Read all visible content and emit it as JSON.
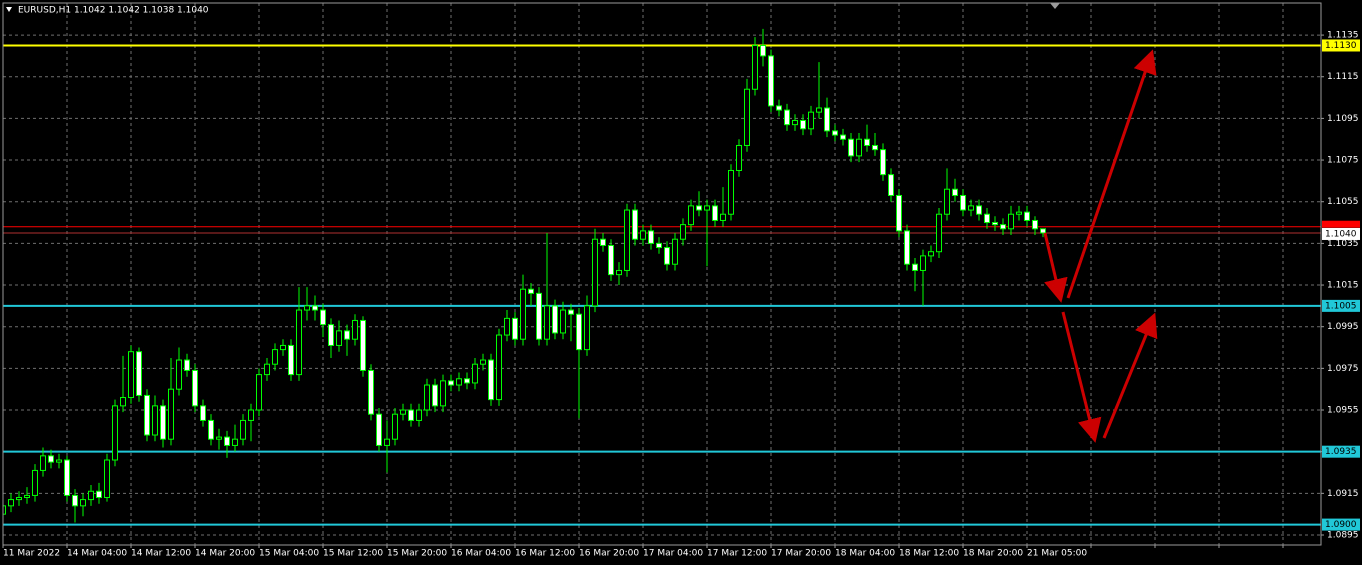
{
  "chart_data": {
    "type": "candlestick",
    "title": "EURUSD,H1  1.1042 1.1042 1.1038 1.1040",
    "ylim": [
      1.08902,
      1.11504
    ],
    "yticks": [
      1.0895,
      1.0915,
      1.0935,
      1.0955,
      1.0975,
      1.0995,
      1.1015,
      1.1035,
      1.1055,
      1.1075,
      1.1095,
      1.1115,
      1.1135
    ],
    "grid": true,
    "bull_color": "#000000",
    "bear_color": "#ffffff",
    "wick_color": "#00ff00",
    "categories": [
      "11 Mar 2022",
      null,
      null,
      null,
      null,
      null,
      null,
      null,
      "14 Mar 04:00",
      null,
      null,
      null,
      null,
      null,
      null,
      null,
      "14 Mar 12:00",
      null,
      null,
      null,
      null,
      null,
      null,
      null,
      "14 Mar 20:00",
      null,
      null,
      null,
      null,
      null,
      null,
      null,
      "15 Mar 04:00",
      null,
      null,
      null,
      null,
      null,
      null,
      null,
      "15 Mar 12:00",
      null,
      null,
      null,
      null,
      null,
      null,
      null,
      "15 Mar 20:00",
      null,
      null,
      null,
      null,
      null,
      null,
      null,
      "16 Mar 04:00",
      null,
      null,
      null,
      null,
      null,
      null,
      null,
      "16 Mar 12:00",
      null,
      null,
      null,
      null,
      null,
      null,
      null,
      "16 Mar 20:00",
      null,
      null,
      null,
      null,
      null,
      null,
      null,
      "17 Mar 04:00",
      null,
      null,
      null,
      null,
      null,
      null,
      null,
      "17 Mar 12:00",
      null,
      null,
      null,
      null,
      null,
      null,
      null,
      "17 Mar 20:00",
      null,
      null,
      null,
      null,
      null,
      null,
      null,
      "18 Mar 04:00",
      null,
      null,
      null,
      null,
      null,
      null,
      null,
      "18 Mar 12:00",
      null,
      null,
      null,
      null,
      null,
      null,
      null,
      "18 Mar 20:00",
      null,
      null,
      null,
      null,
      null,
      null,
      null,
      "21 Mar 05:00",
      null,
      null
    ],
    "candles": [
      [
        1.0905,
        1.0915,
        1.0898,
        1.0909
      ],
      [
        1.0909,
        1.0915,
        1.0906,
        1.0912
      ],
      [
        1.0912,
        1.0916,
        1.0909,
        1.0913
      ],
      [
        1.0913,
        1.0918,
        1.091,
        1.0914
      ],
      [
        1.0914,
        1.0929,
        1.0911,
        1.0926
      ],
      [
        1.0926,
        1.0937,
        1.0923,
        1.0933
      ],
      [
        1.0933,
        1.0936,
        1.0927,
        1.093
      ],
      [
        1.093,
        1.0934,
        1.0927,
        1.0931
      ],
      [
        1.0931,
        1.0933,
        1.0911,
        1.0914
      ],
      [
        1.0914,
        1.0917,
        1.0901,
        1.0909
      ],
      [
        1.0909,
        1.0915,
        1.0904,
        1.0912
      ],
      [
        1.0912,
        1.0919,
        1.0909,
        1.0916
      ],
      [
        1.0916,
        1.092,
        1.091,
        1.0913
      ],
      [
        1.0913,
        1.0934,
        1.0911,
        1.0931
      ],
      [
        1.0931,
        1.096,
        1.0928,
        1.0957
      ],
      [
        1.0957,
        1.0981,
        1.0954,
        1.0961
      ],
      [
        1.0961,
        1.0986,
        1.0958,
        1.0983
      ],
      [
        1.0983,
        1.0985,
        1.0959,
        1.0962
      ],
      [
        1.0962,
        1.0965,
        1.094,
        1.0943
      ],
      [
        1.0943,
        1.0962,
        1.094,
        1.0957
      ],
      [
        1.0957,
        1.096,
        1.0937,
        1.0941
      ],
      [
        1.0941,
        1.098,
        1.0938,
        1.0965
      ],
      [
        1.0965,
        1.0985,
        1.0962,
        1.0979
      ],
      [
        1.0979,
        1.0982,
        1.0971,
        1.0974
      ],
      [
        1.0974,
        1.0977,
        1.0954,
        1.0957
      ],
      [
        1.0957,
        1.096,
        1.0947,
        1.095
      ],
      [
        1.095,
        1.0953,
        1.0938,
        1.0941
      ],
      [
        1.0941,
        1.0946,
        1.0936,
        1.0942
      ],
      [
        1.0942,
        1.0945,
        1.0932,
        1.0938
      ],
      [
        1.0938,
        1.0948,
        1.0935,
        1.0941
      ],
      [
        1.0941,
        1.0953,
        1.0938,
        1.095
      ],
      [
        1.095,
        1.0958,
        1.094,
        1.0955
      ],
      [
        1.0955,
        1.0975,
        1.0952,
        1.0972
      ],
      [
        1.0972,
        1.098,
        1.0969,
        1.0977
      ],
      [
        1.0977,
        1.0987,
        1.0974,
        1.0984
      ],
      [
        1.0984,
        1.0989,
        1.0981,
        1.0986
      ],
      [
        1.0986,
        1.0989,
        1.0969,
        1.0972
      ],
      [
        1.0972,
        1.1014,
        1.0969,
        1.1003
      ],
      [
        1.1003,
        1.1014,
        1.0998,
        1.1005
      ],
      [
        1.1005,
        1.101,
        1.0998,
        1.1003
      ],
      [
        1.1003,
        1.1006,
        1.099,
        1.0996
      ],
      [
        1.0996,
        1.0999,
        1.098,
        1.0986
      ],
      [
        1.0986,
        1.0998,
        1.0983,
        1.0993
      ],
      [
        1.0993,
        1.0996,
        1.0981,
        1.0989
      ],
      [
        1.0989,
        1.1001,
        1.0986,
        1.0998
      ],
      [
        1.0998,
        1.1,
        1.0971,
        1.0974
      ],
      [
        1.0974,
        1.0977,
        1.095,
        1.0953
      ],
      [
        1.0953,
        1.0956,
        1.0935,
        1.0938
      ],
      [
        1.0938,
        1.095,
        1.0925,
        1.0941
      ],
      [
        1.0941,
        1.0956,
        1.0938,
        1.0953
      ],
      [
        1.0953,
        1.0958,
        1.095,
        1.0955
      ],
      [
        1.0955,
        1.0958,
        1.0947,
        1.095
      ],
      [
        1.095,
        1.0958,
        1.0947,
        1.0955
      ],
      [
        1.0955,
        1.097,
        1.0952,
        1.0967
      ],
      [
        1.0967,
        1.097,
        1.0954,
        1.0957
      ],
      [
        1.0957,
        1.0972,
        1.0954,
        1.0969
      ],
      [
        1.0969,
        1.0972,
        1.0964,
        1.0967
      ],
      [
        1.0967,
        1.0973,
        1.0964,
        1.097
      ],
      [
        1.097,
        1.0973,
        1.0965,
        1.0968
      ],
      [
        1.0968,
        1.098,
        1.0965,
        1.0977
      ],
      [
        1.0977,
        1.0982,
        1.0974,
        1.0979
      ],
      [
        1.0979,
        1.0982,
        1.0957,
        1.096
      ],
      [
        1.096,
        1.0994,
        1.0957,
        1.0991
      ],
      [
        1.0991,
        1.1003,
        1.0988,
        1.0999
      ],
      [
        1.0999,
        1.1002,
        1.0986,
        1.0989
      ],
      [
        1.0989,
        1.102,
        1.0986,
        1.1013
      ],
      [
        1.1013,
        1.1016,
        1.1005,
        1.1011
      ],
      [
        1.1011,
        1.1014,
        1.0986,
        1.0989
      ],
      [
        1.0989,
        1.104,
        1.0986,
        1.1005
      ],
      [
        1.1005,
        1.1008,
        1.0989,
        1.0992
      ],
      [
        1.0992,
        1.1007,
        1.0989,
        1.1003
      ],
      [
        1.1003,
        1.1006,
        1.0988,
        1.1001
      ],
      [
        1.1001,
        1.1004,
        1.0951,
        1.0984
      ],
      [
        1.0984,
        1.101,
        1.0981,
        1.1005
      ],
      [
        1.1005,
        1.1042,
        1.1002,
        1.1037
      ],
      [
        1.1037,
        1.104,
        1.1031,
        1.1034
      ],
      [
        1.1034,
        1.1037,
        1.1017,
        1.102
      ],
      [
        1.102,
        1.1026,
        1.1015,
        1.1022
      ],
      [
        1.1022,
        1.1054,
        1.1019,
        1.1051
      ],
      [
        1.1051,
        1.1054,
        1.1034,
        1.1037
      ],
      [
        1.1037,
        1.1044,
        1.1034,
        1.1041
      ],
      [
        1.1041,
        1.1044,
        1.1032,
        1.1035
      ],
      [
        1.1035,
        1.1038,
        1.103,
        1.1033
      ],
      [
        1.1033,
        1.1036,
        1.1022,
        1.1025
      ],
      [
        1.1025,
        1.104,
        1.1022,
        1.1037
      ],
      [
        1.1037,
        1.1047,
        1.1034,
        1.1044
      ],
      [
        1.1044,
        1.1056,
        1.1041,
        1.1053
      ],
      [
        1.1053,
        1.106,
        1.1048,
        1.1051
      ],
      [
        1.1051,
        1.1056,
        1.1024,
        1.1053
      ],
      [
        1.1053,
        1.1056,
        1.1043,
        1.1046
      ],
      [
        1.1046,
        1.1062,
        1.1043,
        1.1049
      ],
      [
        1.1049,
        1.1073,
        1.1046,
        1.107
      ],
      [
        1.107,
        1.1085,
        1.1067,
        1.1082
      ],
      [
        1.1082,
        1.1114,
        1.1079,
        1.1109
      ],
      [
        1.1109,
        1.1134,
        1.1106,
        1.113
      ],
      [
        1.113,
        1.1138,
        1.112,
        1.1125
      ],
      [
        1.1125,
        1.1128,
        1.1098,
        1.1101
      ],
      [
        1.1101,
        1.1104,
        1.1096,
        1.1099
      ],
      [
        1.1099,
        1.1102,
        1.1089,
        1.1092
      ],
      [
        1.1092,
        1.1097,
        1.1089,
        1.1094
      ],
      [
        1.1094,
        1.1097,
        1.1087,
        1.109
      ],
      [
        1.109,
        1.1101,
        1.1087,
        1.1098
      ],
      [
        1.1098,
        1.1122,
        1.1095,
        1.11
      ],
      [
        1.11,
        1.1105,
        1.1086,
        1.1089
      ],
      [
        1.1089,
        1.1092,
        1.1084,
        1.1087
      ],
      [
        1.1087,
        1.109,
        1.1082,
        1.1085
      ],
      [
        1.1085,
        1.1088,
        1.1074,
        1.1077
      ],
      [
        1.1077,
        1.1088,
        1.1074,
        1.1085
      ],
      [
        1.1085,
        1.1092,
        1.1079,
        1.1082
      ],
      [
        1.1082,
        1.1088,
        1.1077,
        1.108
      ],
      [
        1.108,
        1.1083,
        1.1065,
        1.1068
      ],
      [
        1.1068,
        1.1071,
        1.1055,
        1.1058
      ],
      [
        1.1058,
        1.1061,
        1.1038,
        1.1041
      ],
      [
        1.1041,
        1.1044,
        1.1022,
        1.1025
      ],
      [
        1.1025,
        1.1028,
        1.1012,
        1.1022
      ],
      [
        1.1022,
        1.1032,
        1.1005,
        1.1029
      ],
      [
        1.1029,
        1.1034,
        1.1026,
        1.1031
      ],
      [
        1.1031,
        1.1052,
        1.1028,
        1.1049
      ],
      [
        1.1049,
        1.1071,
        1.1046,
        1.1061
      ],
      [
        1.1061,
        1.1066,
        1.1055,
        1.1058
      ],
      [
        1.1058,
        1.1061,
        1.1048,
        1.1051
      ],
      [
        1.1051,
        1.1056,
        1.1048,
        1.1053
      ],
      [
        1.1053,
        1.1056,
        1.1046,
        1.1049
      ],
      [
        1.1049,
        1.1052,
        1.1042,
        1.1045
      ],
      [
        1.1045,
        1.1048,
        1.1041,
        1.1044
      ],
      [
        1.1044,
        1.1047,
        1.1039,
        1.1042
      ],
      [
        1.1042,
        1.1053,
        1.1039,
        1.1049
      ],
      [
        1.1049,
        1.1053,
        1.1046,
        1.105
      ],
      [
        1.105,
        1.1053,
        1.1043,
        1.1046
      ],
      [
        1.1046,
        1.1048,
        1.1039,
        1.1042
      ],
      [
        1.1042,
        1.1042,
        1.1038,
        1.104
      ]
    ],
    "levels": [
      {
        "price": {
          "value": 1.113,
          "label": "1.1130"
        },
        "color": "#ffff00"
      },
      {
        "price": 1.1005,
        "color": "#20c8d8"
      },
      {
        "price": 1.0935,
        "color": "#20c8d8"
      },
      {
        "price": {
          "value": 1.09,
          "label": "1.0900"
        },
        "color": "#20c8d8"
      }
    ],
    "ask": 1.1043,
    "ask_color": "#ff0000",
    "bid": {
      "value": 1.104,
      "label": "1.1040"
    },
    "bid_color": "#b03030"
  }
}
